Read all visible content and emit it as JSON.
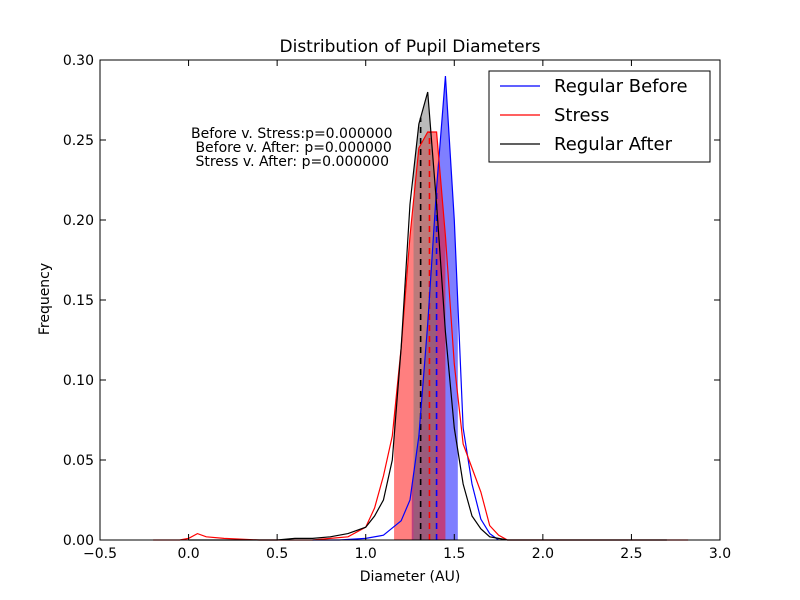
{
  "chart_data": {
    "type": "line",
    "title": "Distribution of Pupil Diameters",
    "xlabel": "Diameter (AU)",
    "ylabel": "Frequency",
    "xlim": [
      -0.5,
      3.0
    ],
    "ylim": [
      0.0,
      0.3
    ],
    "xticks": [
      "−0.5",
      "0.0",
      "0.5",
      "1.0",
      "1.5",
      "2.0",
      "2.5",
      "3.0"
    ],
    "yticks": [
      "0.00",
      "0.05",
      "0.10",
      "0.15",
      "0.20",
      "0.25",
      "0.30"
    ],
    "grid": false,
    "legend_position": "top-right",
    "annotations": [
      "Before v. Stress:p=0.000000",
      " Before v. After: p=0.000000",
      " Stress v. After: p=0.000000"
    ],
    "series": [
      {
        "name": "Regular Before",
        "color": "#0000ff",
        "shade_color": "#0000ff",
        "shade_range": [
          1.26,
          1.52
        ],
        "mean": 1.4,
        "x": [
          0.7,
          0.85,
          1.0,
          1.1,
          1.2,
          1.25,
          1.3,
          1.35,
          1.4,
          1.45,
          1.5,
          1.55,
          1.6,
          1.65,
          1.7,
          1.75
        ],
        "values": [
          0.0,
          0.0,
          0.001,
          0.003,
          0.012,
          0.025,
          0.065,
          0.135,
          0.22,
          0.29,
          0.2,
          0.07,
          0.035,
          0.013,
          0.004,
          0.0
        ]
      },
      {
        "name": "Stress",
        "color": "#ff0000",
        "shade_color": "#ff0000",
        "shade_range": [
          1.16,
          1.45
        ],
        "mean": 1.36,
        "x": [
          -0.2,
          -0.05,
          0.0,
          0.05,
          0.1,
          0.2,
          0.4,
          0.6,
          0.7,
          0.8,
          0.9,
          1.0,
          1.05,
          1.1,
          1.15,
          1.2,
          1.25,
          1.3,
          1.35,
          1.4,
          1.45,
          1.5,
          1.55,
          1.6,
          1.65,
          1.7,
          1.75,
          1.8,
          2.0,
          2.5,
          2.82
        ],
        "values": [
          0.0,
          0.0,
          0.001,
          0.004,
          0.002,
          0.001,
          0.0,
          0.0,
          0.0,
          0.001,
          0.002,
          0.008,
          0.02,
          0.04,
          0.065,
          0.12,
          0.19,
          0.245,
          0.255,
          0.255,
          0.19,
          0.11,
          0.06,
          0.045,
          0.03,
          0.009,
          0.003,
          0.0,
          0.0,
          0.0,
          0.0
        ]
      },
      {
        "name": "Regular After",
        "color": "#000000",
        "shade_color": "#777777",
        "shade_range": [
          1.27,
          1.4
        ],
        "mean": 1.31,
        "x": [
          0.0,
          0.05,
          0.1,
          0.3,
          0.5,
          0.6,
          0.7,
          0.8,
          0.9,
          1.0,
          1.05,
          1.1,
          1.15,
          1.2,
          1.25,
          1.3,
          1.35,
          1.4,
          1.45,
          1.5,
          1.55,
          1.6,
          1.65,
          1.7,
          1.75,
          1.8,
          2.0,
          2.7
        ],
        "values": [
          0.0,
          0.0,
          0.0,
          0.0,
          0.0,
          0.001,
          0.001,
          0.002,
          0.004,
          0.008,
          0.015,
          0.025,
          0.05,
          0.12,
          0.21,
          0.26,
          0.28,
          0.21,
          0.13,
          0.07,
          0.035,
          0.015,
          0.007,
          0.002,
          0.001,
          0.0,
          0.0,
          0.0
        ]
      }
    ]
  }
}
